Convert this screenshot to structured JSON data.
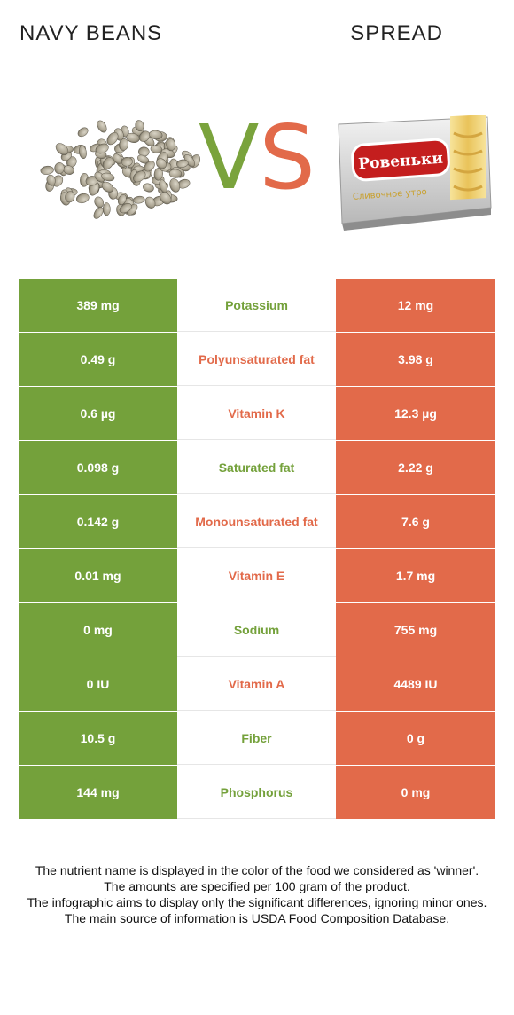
{
  "header": {
    "left_title": "NAVY BEANS",
    "right_title": "SPREAD",
    "vs_v": "V",
    "vs_s": "S"
  },
  "colors": {
    "left_food": "#74a13b",
    "right_food": "#e26a4a"
  },
  "pack_label": {
    "brand": "Ровеньки",
    "subtitle": "Сливочное утро"
  },
  "rows": [
    {
      "nutrient": "Potassium",
      "left": "389 mg",
      "right": "12 mg",
      "winner": "left"
    },
    {
      "nutrient": "Polyunsaturated fat",
      "left": "0.49 g",
      "right": "3.98 g",
      "winner": "right"
    },
    {
      "nutrient": "Vitamin K",
      "left": "0.6 µg",
      "right": "12.3 µg",
      "winner": "right"
    },
    {
      "nutrient": "Saturated fat",
      "left": "0.098 g",
      "right": "2.22 g",
      "winner": "left"
    },
    {
      "nutrient": "Monounsaturated fat",
      "left": "0.142 g",
      "right": "7.6 g",
      "winner": "right"
    },
    {
      "nutrient": "Vitamin E",
      "left": "0.01 mg",
      "right": "1.7 mg",
      "winner": "right"
    },
    {
      "nutrient": "Sodium",
      "left": "0 mg",
      "right": "755 mg",
      "winner": "left"
    },
    {
      "nutrient": "Vitamin A",
      "left": "0 IU",
      "right": "4489 IU",
      "winner": "right"
    },
    {
      "nutrient": "Fiber",
      "left": "10.5 g",
      "right": "0 g",
      "winner": "left"
    },
    {
      "nutrient": "Phosphorus",
      "left": "144 mg",
      "right": "0 mg",
      "winner": "left"
    }
  ],
  "footer": {
    "line1": "The nutrient name is displayed in the color of the food we considered as 'winner'.",
    "line2": "The amounts are specified per 100 gram of the product.",
    "line3": "The infographic aims to display only the significant differences, ignoring minor ones.",
    "line4": "The main source of information is USDA Food Composition Database."
  }
}
